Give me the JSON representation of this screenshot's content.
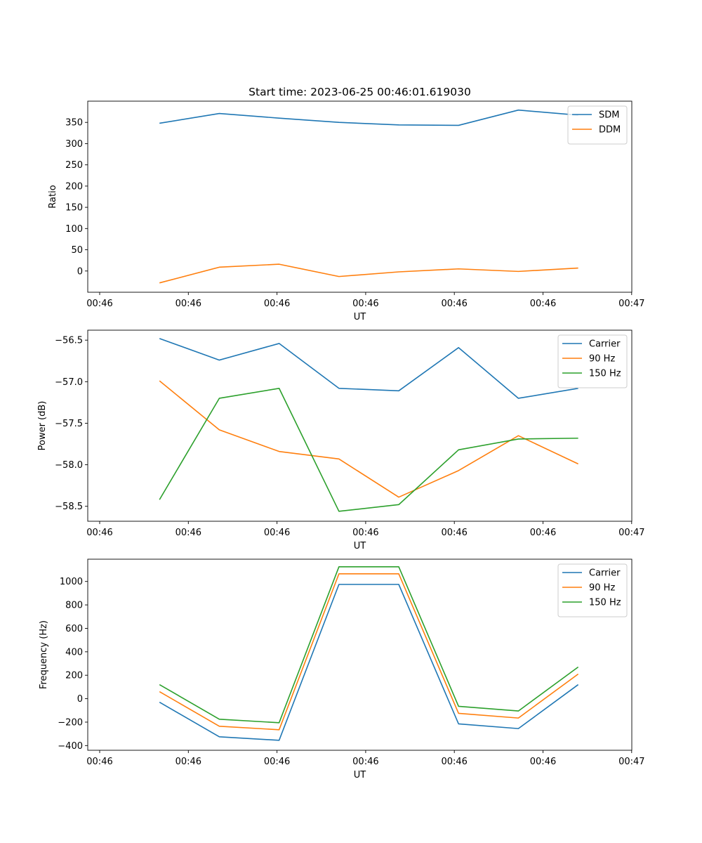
{
  "figure": {
    "title": "Start time: 2023-06-25 00:46:01.619030"
  },
  "chart_data": [
    {
      "type": "line",
      "title": "Start time: 2023-06-25 00:46:01.619030",
      "xlabel": "UT",
      "ylabel": "Ratio",
      "x_tick_labels": [
        "00:46",
        "00:46",
        "00:46",
        "00:46",
        "00:46",
        "00:46",
        "00:47"
      ],
      "y_ticks": [
        0,
        50,
        100,
        150,
        200,
        250,
        300,
        350
      ],
      "ylim": [
        -50,
        400
      ],
      "x_sample_index": [
        1,
        2,
        3,
        4,
        5,
        6,
        7,
        8
      ],
      "series": [
        {
          "name": "SDM",
          "color": "#1f77b4",
          "values": [
            348,
            371,
            360,
            350,
            344,
            343,
            379,
            367
          ]
        },
        {
          "name": "DDM",
          "color": "#ff7f0e",
          "values": [
            -28,
            9,
            16,
            -13,
            -2,
            5,
            -1,
            7
          ]
        }
      ],
      "legend": "top-right",
      "grid": false
    },
    {
      "type": "line",
      "xlabel": "UT",
      "ylabel": "Power (dB)",
      "x_tick_labels": [
        "00:46",
        "00:46",
        "00:46",
        "00:46",
        "00:46",
        "00:46",
        "00:47"
      ],
      "y_ticks": [
        -58.5,
        -58.0,
        -57.5,
        -57.0,
        -56.5
      ],
      "y_tick_labels": [
        "−58.5",
        "−58.0",
        "−57.5",
        "−57.0",
        "−56.5"
      ],
      "ylim": [
        -58.68,
        -56.38
      ],
      "x_sample_index": [
        1,
        2,
        3,
        4,
        5,
        6,
        7,
        8
      ],
      "series": [
        {
          "name": "Carrier",
          "color": "#1f77b4",
          "values": [
            -56.48,
            -56.74,
            -56.54,
            -57.08,
            -57.11,
            -56.59,
            -57.2,
            -57.08
          ]
        },
        {
          "name": "90 Hz",
          "color": "#ff7f0e",
          "values": [
            -56.99,
            -57.58,
            -57.84,
            -57.93,
            -58.39,
            -58.07,
            -57.65,
            -57.99
          ]
        },
        {
          "name": "150 Hz",
          "color": "#2ca02c",
          "values": [
            -58.42,
            -57.2,
            -57.08,
            -58.56,
            -58.48,
            -57.82,
            -57.69,
            -57.68
          ]
        }
      ],
      "legend": "top-right",
      "grid": false
    },
    {
      "type": "line",
      "xlabel": "UT",
      "ylabel": "Frequency (Hz)",
      "x_tick_labels": [
        "00:46",
        "00:46",
        "00:46",
        "00:46",
        "00:46",
        "00:46",
        "00:47"
      ],
      "y_ticks": [
        -400,
        -200,
        0,
        200,
        400,
        600,
        800,
        1000
      ],
      "y_tick_labels": [
        "−400",
        "−200",
        "0",
        "200",
        "400",
        "600",
        "800",
        "1000"
      ],
      "ylim": [
        -440,
        1190
      ],
      "x_sample_index": [
        1,
        2,
        3,
        4,
        5,
        6,
        7,
        8
      ],
      "series": [
        {
          "name": "Carrier",
          "color": "#1f77b4",
          "values": [
            -30,
            -325,
            -355,
            975,
            975,
            -215,
            -255,
            120
          ]
        },
        {
          "name": "90 Hz",
          "color": "#ff7f0e",
          "values": [
            60,
            -235,
            -265,
            1065,
            1065,
            -125,
            -165,
            210
          ]
        },
        {
          "name": "150 Hz",
          "color": "#2ca02c",
          "values": [
            120,
            -175,
            -205,
            1125,
            1125,
            -65,
            -105,
            270
          ]
        }
      ],
      "legend": "top-right",
      "grid": false
    }
  ]
}
